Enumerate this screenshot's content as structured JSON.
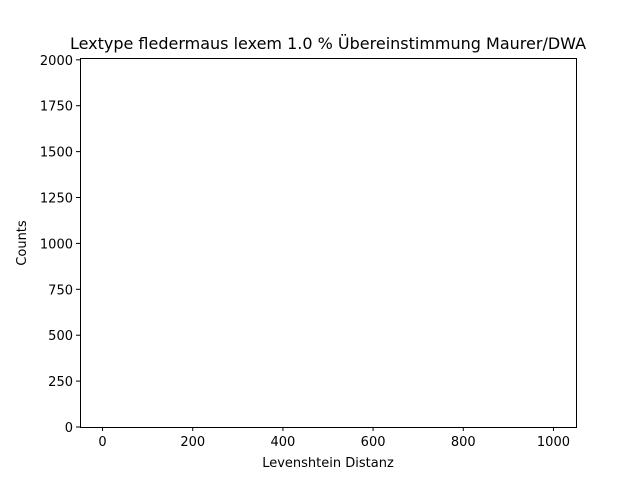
{
  "chart_data": {
    "type": "bar",
    "title": "Lextype fledermaus lexem 1.0 % Übereinstimmung Maurer/DWA",
    "xlabel": "Levenshtein Distanz",
    "ylabel": "Counts",
    "xlim": [
      -50,
      1050
    ],
    "ylim": [
      0,
      2010
    ],
    "xticks": [
      0,
      200,
      400,
      600,
      800,
      1000
    ],
    "xtick_labels": [
      "0",
      "200",
      "400",
      "600",
      "800",
      "1000"
    ],
    "yticks": [
      0,
      250,
      500,
      750,
      1000,
      1250,
      1500,
      1750,
      2000
    ],
    "ytick_labels": [
      "0",
      "250",
      "500",
      "750",
      "1000",
      "1250",
      "1500",
      "1750",
      "2000"
    ],
    "grid": false,
    "series": [
      {
        "values": []
      }
    ]
  }
}
